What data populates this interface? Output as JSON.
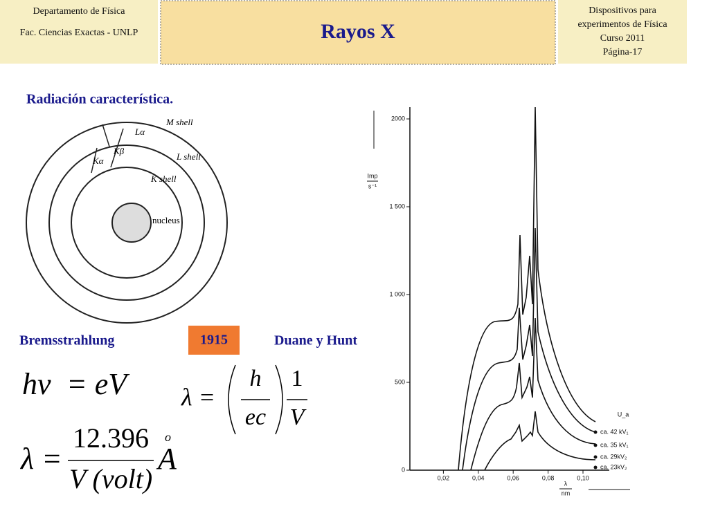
{
  "header": {
    "left": [
      "Departamento de Física",
      "Fac. Ciencias Exactas - UNLP"
    ],
    "title": "Rayos X",
    "right": [
      "Dispositivos para",
      "experimentos de Física",
      "Curso 2011",
      "Página-17"
    ]
  },
  "section_title": "Radiación característica.",
  "atom": {
    "shells": [
      "M shell",
      "L shell",
      "K shell"
    ],
    "nucleus": "nucleus",
    "transitions": [
      "Lα",
      "Kβ",
      "Kα"
    ]
  },
  "labels": {
    "left": "Bremsstrahlung",
    "year": "1915",
    "right": "Duane y Hunt"
  },
  "formulas": {
    "energy": {
      "lhs": "hν",
      "rhs": "= eV"
    },
    "duane_hunt": {
      "lhs": "λ =",
      "num1": "h",
      "den1": "ec",
      "num2": "1",
      "den2": "V"
    },
    "wavelength": {
      "lhs": "λ =",
      "num": "12.396",
      "den": "V (volt)",
      "unit": "A",
      "ring": "o"
    }
  },
  "spectrum": {
    "ylabel": [
      "Imp",
      "s⁻¹"
    ],
    "xlabel": [
      "λ",
      "nm"
    ],
    "yticks": [
      0,
      500,
      {
        "value": 1000,
        "label": "1 000"
      },
      {
        "value": 1500,
        "label": "1 500"
      },
      2000
    ],
    "xticks": [
      {
        "value": 0.02,
        "label": "0,02"
      },
      {
        "value": 0.04,
        "label": "0,04"
      },
      {
        "value": 0.06,
        "label": "0,06"
      },
      {
        "value": 0.08,
        "label": "0,08"
      },
      {
        "value": 0.1,
        "label": "0,10"
      }
    ],
    "legend_title": "U_a",
    "legend": [
      "ca. 42 kV₁",
      "ca. 35 kV₁",
      "ca. 29kV₂",
      "ca. 23kV₂"
    ]
  }
}
